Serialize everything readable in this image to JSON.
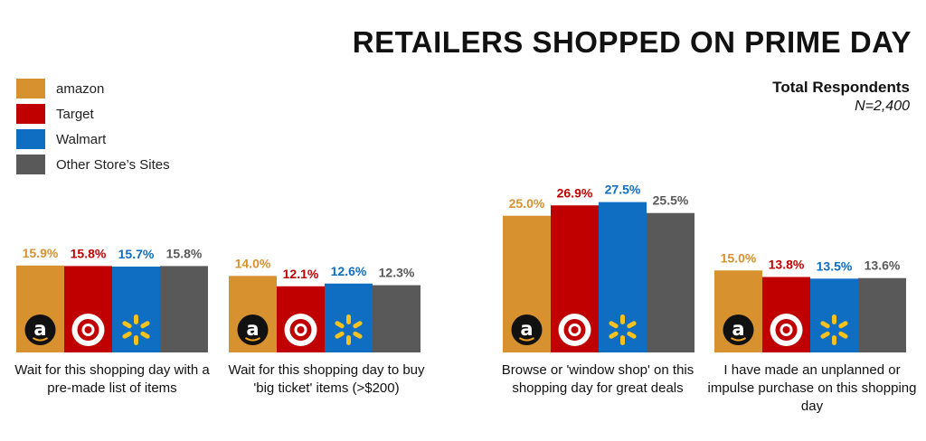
{
  "chart_data": {
    "type": "bar",
    "title": "RETAILERS SHOPPED ON PRIME DAY",
    "respondents_label": "Total Respondents",
    "respondents_n": "N=2,400",
    "categories": [
      "Wait for this shopping day with a pre-made list of items",
      "Wait for this shopping day to buy 'big ticket' items (>$200)",
      "Browse or 'window shop' on this shopping day for great deals",
      "I have made an unplanned or impulse purchase on this shopping day"
    ],
    "series": [
      {
        "name": "amazon",
        "color": "#D8912F",
        "values": [
          15.9,
          14.0,
          25.0,
          15.0
        ],
        "labels": [
          "15.9%",
          "14.0%",
          "25.0%",
          "15.0%"
        ]
      },
      {
        "name": "Target",
        "color": "#C00000",
        "values": [
          15.8,
          12.1,
          26.9,
          13.8
        ],
        "labels": [
          "15.8%",
          "12.1%",
          "26.9%",
          "13.8%"
        ]
      },
      {
        "name": "Walmart",
        "color": "#0F6EC1",
        "values": [
          15.7,
          12.6,
          27.5,
          13.5
        ],
        "labels": [
          "15.7%",
          "12.6%",
          "27.5%",
          "13.5%"
        ]
      },
      {
        "name": "Other Store’s Sites",
        "color": "#595959",
        "values": [
          15.8,
          12.3,
          25.5,
          13.6
        ],
        "labels": [
          "15.8%",
          "12.3%",
          "25.5%",
          "13.6%"
        ]
      }
    ],
    "logos": [
      "amazon-logo",
      "target-logo",
      "walmart-logo"
    ],
    "legend_position": "top-left",
    "ylim": [
      0,
      30
    ],
    "grid": false
  }
}
